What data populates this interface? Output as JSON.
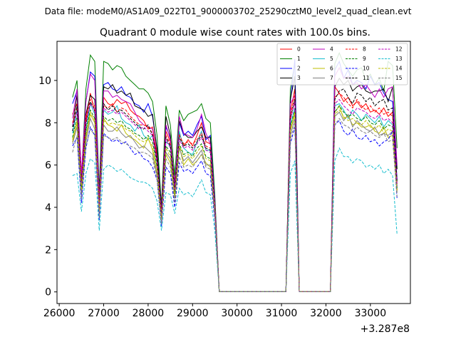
{
  "chart_data": {
    "type": "line",
    "suptitle": "Data file: modeM0/AS1A09_022T01_9000003702_25290cztM0_level2_quad_clean.evt",
    "title": "Quadrant 0 module wise count rates with 100.0s bins.",
    "xlabel": "",
    "ylabel": "",
    "x_offset_label": "+3.287e8",
    "xlim": [
      25950,
      33900
    ],
    "ylim": [
      -0.55,
      11.85
    ],
    "xticks": [
      26000,
      27000,
      28000,
      29000,
      30000,
      31000,
      32000,
      33000
    ],
    "yticks": [
      0,
      2,
      4,
      6,
      8,
      10
    ],
    "legend_position": "top-right",
    "x": [
      26300,
      26400,
      26500,
      26600,
      26700,
      26800,
      26900,
      27000,
      27100,
      27200,
      27300,
      27400,
      27500,
      27600,
      27700,
      27800,
      27900,
      28000,
      28100,
      28200,
      28300,
      28400,
      28500,
      28600,
      28700,
      28800,
      28900,
      29000,
      29100,
      29200,
      29300,
      29400,
      29500,
      29600,
      29700,
      31100,
      31200,
      31300,
      31400,
      32100,
      32200,
      32300,
      32400,
      32500,
      32600,
      32700,
      32800,
      32900,
      33000,
      33100,
      33200,
      33300,
      33400,
      33500,
      33600
    ],
    "series": [
      {
        "name": "0",
        "color": "#ff0000",
        "dash": "solid",
        "values": [
          8.4,
          8.9,
          5.3,
          8.1,
          9.4,
          8.5,
          4.4,
          9.2,
          8.9,
          8.8,
          9.1,
          8.9,
          9.0,
          8.6,
          8.4,
          8.3,
          8.1,
          7.7,
          7.8,
          6.5,
          3.9,
          7.6,
          7.1,
          5.2,
          7.5,
          6.9,
          7.2,
          6.9,
          7.4,
          8.0,
          7.1,
          7.0,
          4.2,
          0.02,
          0.02,
          0.02,
          8.5,
          9.6,
          0.02,
          0.02,
          9.7,
          9.4,
          9.0,
          9.2,
          8.8,
          9.0,
          8.7,
          8.9,
          8.5,
          8.6,
          8.4,
          8.7,
          8.3,
          8.5,
          4.8
        ]
      },
      {
        "name": "1",
        "color": "#008000",
        "dash": "solid",
        "values": [
          9.2,
          10.0,
          5.4,
          9.6,
          11.2,
          10.9,
          4.8,
          10.9,
          10.8,
          10.5,
          10.7,
          10.6,
          10.2,
          10.0,
          9.8,
          9.6,
          9.6,
          9.4,
          9.0,
          7.4,
          4.1,
          8.8,
          7.9,
          5.5,
          8.6,
          8.1,
          8.4,
          8.5,
          8.6,
          8.9,
          8.2,
          8.0,
          4.6,
          0.02,
          0.02,
          0.02,
          9.6,
          10.8,
          0.02,
          0.02,
          10.8,
          11.3,
          10.8,
          10.5,
          10.2,
          10.5,
          10.6,
          10.0,
          10.3,
          9.8,
          10.1,
          9.5,
          10.9,
          10.7,
          6.8
        ]
      },
      {
        "name": "2",
        "color": "#0000ff",
        "dash": "solid",
        "values": [
          8.9,
          9.5,
          5.2,
          9.0,
          10.4,
          10.2,
          4.5,
          9.8,
          9.9,
          9.6,
          9.5,
          9.7,
          9.3,
          9.2,
          8.9,
          8.8,
          8.5,
          8.9,
          8.3,
          6.8,
          3.9,
          7.8,
          7.3,
          5.0,
          8.0,
          7.4,
          7.6,
          7.4,
          7.9,
          8.3,
          7.2,
          7.4,
          4.3,
          0.02,
          0.02,
          0.02,
          9.0,
          11.0,
          0.02,
          0.02,
          10.5,
          10.9,
          10.1,
          10.5,
          9.8,
          10.0,
          9.9,
          9.6,
          10.2,
          9.8,
          9.9,
          9.4,
          9.1,
          9.0,
          5.3
        ]
      },
      {
        "name": "3",
        "color": "#000000",
        "dash": "solid",
        "values": [
          7.8,
          9.3,
          5.1,
          8.4,
          9.3,
          9.1,
          4.5,
          9.7,
          9.6,
          9.8,
          9.4,
          9.5,
          9.3,
          9.4,
          8.8,
          8.7,
          8.6,
          8.3,
          8.4,
          6.7,
          3.8,
          8.3,
          7.4,
          4.8,
          8.1,
          7.5,
          7.3,
          7.3,
          7.6,
          7.8,
          7.3,
          7.3,
          4.1,
          0.02,
          0.02,
          0.02,
          9.1,
          10.2,
          0.02,
          0.02,
          9.7,
          10.1,
          9.8,
          10.0,
          9.5,
          9.7,
          9.8,
          9.5,
          9.4,
          9.5,
          9.5,
          9.6,
          9.0,
          9.7,
          5.8
        ]
      },
      {
        "name": "4",
        "color": "#bf00bf",
        "dash": "solid",
        "values": [
          8.2,
          9.6,
          5.6,
          9.0,
          10.3,
          10.0,
          4.3,
          9.5,
          9.5,
          9.2,
          9.3,
          9.1,
          9.0,
          8.9,
          8.5,
          8.1,
          7.9,
          7.8,
          7.7,
          6.3,
          3.7,
          7.9,
          7.2,
          4.7,
          8.3,
          7.5,
          7.4,
          7.3,
          7.7,
          8.4,
          7.5,
          7.0,
          4.2,
          0.02,
          0.02,
          0.02,
          8.9,
          9.3,
          0.02,
          0.02,
          10.2,
          10.6,
          10.1,
          10.2,
          9.8,
          9.9,
          9.6,
          9.8,
          9.5,
          9.2,
          9.6,
          9.2,
          9.6,
          9.7,
          6.0
        ]
      },
      {
        "name": "5",
        "color": "#17becf",
        "dash": "solid",
        "values": [
          7.5,
          8.6,
          5.0,
          7.6,
          8.9,
          8.4,
          3.9,
          8.6,
          8.4,
          8.5,
          8.8,
          8.2,
          8.0,
          7.9,
          7.6,
          7.9,
          7.4,
          7.2,
          7.4,
          6.1,
          3.5,
          7.1,
          6.9,
          4.6,
          7.6,
          6.8,
          6.6,
          6.5,
          7.1,
          7.6,
          6.7,
          6.7,
          4.0,
          0.02,
          0.02,
          0.02,
          7.9,
          8.7,
          0.02,
          0.02,
          8.8,
          8.9,
          8.6,
          8.2,
          8.6,
          8.4,
          8.1,
          8.4,
          8.2,
          8.0,
          8.3,
          7.8,
          8.1,
          7.9,
          5.0
        ]
      },
      {
        "name": "6",
        "color": "#bfbf00",
        "dash": "solid",
        "values": [
          7.1,
          8.0,
          4.7,
          7.3,
          8.4,
          8.0,
          3.7,
          8.2,
          7.9,
          7.8,
          7.6,
          7.9,
          7.5,
          7.3,
          7.2,
          7.0,
          6.8,
          7.3,
          6.7,
          5.6,
          3.3,
          6.5,
          6.1,
          4.5,
          6.9,
          6.0,
          6.3,
          6.0,
          6.2,
          6.5,
          6.1,
          5.9,
          3.7,
          0.02,
          0.02,
          0.02,
          7.6,
          8.4,
          0.02,
          0.02,
          8.5,
          8.8,
          8.2,
          8.3,
          7.9,
          8.0,
          7.8,
          7.8,
          7.9,
          7.6,
          7.5,
          7.8,
          7.3,
          7.4,
          4.8
        ]
      },
      {
        "name": "7",
        "color": "#808080",
        "dash": "solid",
        "values": [
          7.0,
          7.8,
          4.6,
          7.1,
          8.2,
          7.7,
          3.6,
          7.9,
          7.6,
          7.6,
          7.8,
          7.5,
          7.3,
          7.4,
          7.1,
          6.8,
          6.9,
          6.7,
          6.5,
          5.5,
          3.3,
          6.6,
          6.3,
          4.4,
          6.8,
          6.2,
          6.4,
          6.1,
          6.4,
          6.7,
          6.0,
          6.0,
          3.6,
          0.02,
          0.02,
          0.02,
          7.4,
          8.2,
          0.02,
          0.02,
          8.3,
          8.5,
          8.1,
          8.4,
          7.8,
          8.1,
          7.9,
          7.7,
          7.6,
          7.8,
          7.4,
          7.5,
          7.4,
          7.6,
          4.7
        ]
      },
      {
        "name": "8",
        "color": "#ff0000",
        "dash": "dashed",
        "values": [
          8.0,
          8.7,
          5.2,
          8.3,
          9.1,
          8.8,
          4.2,
          8.8,
          8.7,
          8.9,
          8.5,
          8.7,
          8.6,
          8.3,
          8.1,
          7.9,
          7.9,
          7.8,
          7.5,
          6.3,
          3.7,
          7.4,
          7.0,
          4.9,
          7.4,
          7.0,
          7.1,
          7.0,
          7.2,
          7.5,
          6.9,
          6.8,
          4.1,
          0.02,
          0.02,
          0.02,
          8.3,
          9.3,
          0.02,
          0.02,
          9.2,
          9.4,
          9.2,
          8.9,
          8.7,
          9.1,
          8.8,
          8.6,
          8.8,
          8.5,
          8.7,
          8.4,
          8.5,
          8.3,
          5.1
        ]
      },
      {
        "name": "9",
        "color": "#008000",
        "dash": "dashed",
        "values": [
          7.3,
          8.3,
          4.9,
          7.6,
          8.6,
          8.2,
          3.8,
          8.3,
          8.1,
          8.2,
          8.0,
          8.1,
          7.8,
          7.7,
          7.5,
          7.4,
          7.2,
          7.4,
          7.1,
          5.9,
          3.5,
          6.9,
          6.6,
          4.6,
          7.0,
          6.5,
          6.6,
          6.4,
          6.8,
          7.0,
          6.4,
          6.3,
          3.9,
          0.02,
          0.02,
          0.02,
          7.8,
          8.6,
          0.02,
          0.02,
          8.5,
          8.8,
          8.5,
          8.3,
          8.4,
          8.2,
          8.1,
          8.3,
          8.0,
          7.9,
          8.1,
          7.7,
          7.9,
          7.8,
          4.9
        ]
      },
      {
        "name": "10",
        "color": "#0000ff",
        "dash": "dashed",
        "values": [
          6.9,
          7.3,
          4.2,
          6.8,
          7.8,
          7.4,
          3.4,
          7.5,
          7.3,
          7.1,
          7.2,
          7.0,
          7.1,
          6.8,
          6.5,
          6.6,
          6.3,
          6.2,
          5.9,
          5.3,
          3.1,
          5.9,
          5.6,
          4.0,
          6.1,
          5.7,
          5.8,
          5.6,
          5.9,
          6.2,
          5.6,
          5.5,
          3.4,
          0.02,
          0.02,
          0.02,
          7.0,
          7.8,
          0.02,
          0.02,
          7.9,
          8.1,
          7.6,
          7.4,
          7.7,
          7.3,
          7.2,
          7.4,
          7.1,
          7.2,
          6.9,
          7.1,
          7.2,
          7.6,
          4.4
        ]
      },
      {
        "name": "11",
        "color": "#000000",
        "dash": "dashed",
        "values": [
          7.6,
          8.8,
          5.0,
          7.9,
          9.0,
          8.6,
          4.1,
          8.9,
          8.6,
          8.8,
          8.5,
          8.6,
          8.4,
          8.2,
          8.0,
          7.8,
          7.7,
          7.9,
          7.4,
          6.2,
          3.6,
          7.3,
          6.9,
          4.8,
          7.3,
          6.9,
          7.0,
          6.8,
          7.1,
          7.4,
          6.8,
          6.7,
          4.0,
          0.02,
          0.02,
          0.02,
          8.2,
          9.1,
          0.02,
          0.02,
          9.1,
          9.5,
          9.6,
          9.2,
          8.9,
          9.4,
          9.3,
          9.0,
          9.2,
          8.8,
          9.0,
          9.1,
          8.6,
          8.7,
          5.2
        ]
      },
      {
        "name": "12",
        "color": "#bf00bf",
        "dash": "dashed",
        "values": [
          7.9,
          8.5,
          5.1,
          8.0,
          8.9,
          8.6,
          4.0,
          8.7,
          8.5,
          8.6,
          8.4,
          8.5,
          8.3,
          8.1,
          7.9,
          7.7,
          7.8,
          7.6,
          7.4,
          6.1,
          3.6,
          7.2,
          6.8,
          4.8,
          7.2,
          6.8,
          6.9,
          6.7,
          7.0,
          7.3,
          6.7,
          6.6,
          4.0,
          0.02,
          0.02,
          0.02,
          8.1,
          9.0,
          0.02,
          0.02,
          8.9,
          9.1,
          8.8,
          8.6,
          8.4,
          8.7,
          8.6,
          8.5,
          8.3,
          8.2,
          8.4,
          8.1,
          8.2,
          8.0,
          5.0
        ]
      },
      {
        "name": "13",
        "color": "#17becf",
        "dash": "dashed",
        "values": [
          5.5,
          5.6,
          3.8,
          5.6,
          6.3,
          6.1,
          2.9,
          5.8,
          6.0,
          5.9,
          5.7,
          5.8,
          5.6,
          5.4,
          5.3,
          5.2,
          5.2,
          5.1,
          4.9,
          4.3,
          2.9,
          4.7,
          4.6,
          3.7,
          4.9,
          4.6,
          4.7,
          4.5,
          4.9,
          5.3,
          4.7,
          4.6,
          2.9,
          0.02,
          0.02,
          0.02,
          5.6,
          6.2,
          0.02,
          0.02,
          6.2,
          6.8,
          6.4,
          6.4,
          6.1,
          6.3,
          6.2,
          5.9,
          6.0,
          5.8,
          6.0,
          5.6,
          5.8,
          5.5,
          2.7
        ]
      },
      {
        "name": "14",
        "color": "#bfbf00",
        "dash": "dashed",
        "values": [
          7.2,
          8.1,
          4.8,
          7.4,
          8.5,
          8.1,
          3.8,
          8.1,
          7.9,
          8.0,
          7.9,
          7.9,
          7.7,
          7.6,
          7.4,
          7.2,
          7.1,
          7.2,
          6.9,
          5.8,
          3.4,
          6.8,
          6.4,
          4.5,
          6.9,
          6.4,
          6.5,
          6.3,
          6.6,
          6.9,
          6.3,
          6.2,
          3.8,
          0.02,
          0.02,
          0.02,
          7.7,
          8.5,
          0.02,
          0.02,
          8.4,
          8.6,
          8.3,
          8.1,
          8.2,
          8.0,
          7.9,
          8.1,
          7.8,
          7.7,
          7.9,
          7.5,
          7.7,
          7.6,
          4.7
        ]
      },
      {
        "name": "15",
        "color": "#808080",
        "dash": "dashed",
        "values": [
          6.6,
          7.4,
          4.4,
          6.9,
          7.7,
          7.4,
          3.5,
          7.4,
          7.3,
          7.2,
          7.3,
          7.1,
          7.0,
          6.9,
          6.8,
          6.6,
          6.6,
          6.5,
          6.3,
          5.3,
          3.2,
          6.3,
          5.9,
          4.2,
          6.4,
          5.9,
          6.0,
          5.9,
          6.2,
          6.5,
          5.9,
          5.8,
          3.6,
          0.02,
          0.02,
          0.02,
          7.2,
          8.0,
          0.02,
          0.02,
          7.9,
          8.2,
          7.9,
          7.8,
          7.6,
          7.8,
          7.6,
          7.5,
          7.6,
          7.4,
          7.3,
          7.5,
          7.1,
          7.2,
          4.5
        ]
      }
    ]
  }
}
